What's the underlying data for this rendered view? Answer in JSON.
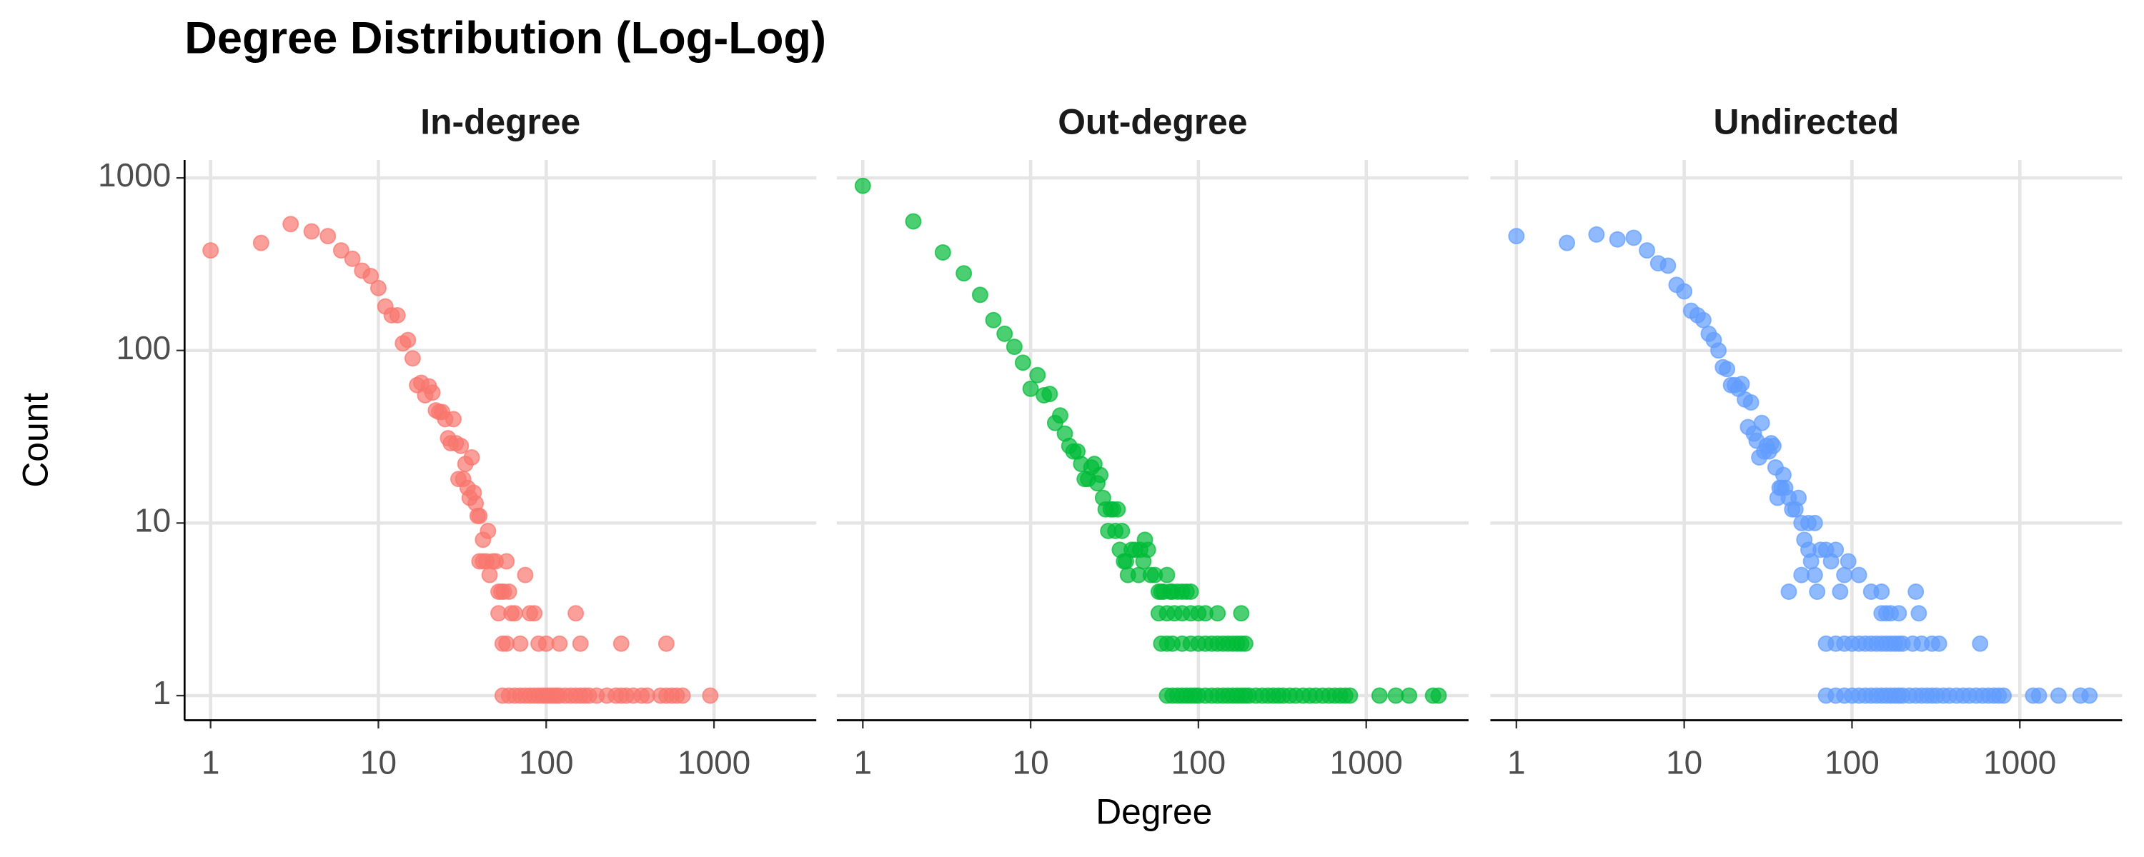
{
  "title": "Degree Distribution (Log-Log)",
  "x_label": "Degree",
  "y_label": "Count",
  "chart_data": [
    {
      "type": "scatter",
      "title": "In-degree",
      "color": "#F8766D",
      "x_log": true,
      "y_log": true,
      "grid": true,
      "xlim": [
        0.7,
        4070
      ],
      "ylim": [
        0.72,
        1270
      ],
      "xticks": [
        1,
        10,
        100,
        1000
      ],
      "yticks": [
        1,
        10,
        100,
        1000
      ],
      "x": [
        1,
        2,
        3,
        4,
        5,
        6,
        7,
        8,
        9,
        10,
        11,
        12,
        13,
        14,
        15,
        16,
        17,
        18,
        19,
        20,
        21,
        22,
        23,
        24,
        25,
        26,
        27,
        28,
        29,
        30,
        31,
        32,
        33,
        34,
        35,
        36,
        37,
        38,
        39,
        40,
        42,
        45,
        40,
        42,
        44,
        46,
        48,
        50,
        52,
        54,
        56,
        58,
        60,
        62,
        55,
        52,
        58,
        65,
        70,
        75,
        80,
        85,
        90,
        100,
        120,
        150,
        160,
        280,
        520,
        55,
        60,
        65,
        70,
        75,
        80,
        85,
        90,
        95,
        100,
        105,
        110,
        115,
        120,
        130,
        140,
        150,
        160,
        170,
        180,
        200,
        230,
        260,
        280,
        300,
        330,
        370,
        400,
        480,
        520,
        560,
        600,
        650,
        950
      ],
      "values": [
        380,
        420,
        540,
        490,
        460,
        380,
        340,
        290,
        270,
        230,
        180,
        160,
        160,
        110,
        115,
        90,
        63,
        65,
        55,
        62,
        57,
        45,
        44,
        44,
        40,
        31,
        29,
        40,
        29,
        18,
        28,
        18,
        22,
        16,
        14,
        24,
        15,
        13,
        11,
        11,
        8,
        9,
        6,
        6,
        6,
        5,
        6,
        6,
        4,
        4,
        4,
        6,
        4,
        3,
        2,
        3,
        2,
        3,
        2,
        5,
        3,
        3,
        2,
        2,
        2,
        3,
        2,
        2,
        2,
        1,
        1,
        1,
        1,
        1,
        1,
        1,
        1,
        1,
        1,
        1,
        1,
        1,
        1,
        1,
        1,
        1,
        1,
        1,
        1,
        1,
        1,
        1,
        1,
        1,
        1,
        1,
        1,
        1,
        1,
        1,
        1,
        1,
        1
      ]
    },
    {
      "type": "scatter",
      "title": "Out-degree",
      "color": "#00BA38",
      "x_log": true,
      "y_log": true,
      "grid": true,
      "xlim": [
        0.7,
        4070
      ],
      "ylim": [
        0.72,
        1270
      ],
      "xticks": [
        1,
        10,
        100,
        1000
      ],
      "yticks": [
        1,
        10,
        100,
        1000
      ],
      "x": [
        1,
        2,
        3,
        4,
        5,
        6,
        7,
        8,
        9,
        10,
        11,
        12,
        13,
        14,
        15,
        16,
        17,
        18,
        19,
        20,
        21,
        22,
        23,
        24,
        25,
        26,
        27,
        28,
        29,
        30,
        31,
        32,
        33,
        34,
        35,
        36,
        37,
        38,
        40,
        42,
        44,
        45,
        47,
        48,
        50,
        52,
        55,
        58,
        60,
        62,
        65,
        68,
        70,
        75,
        80,
        85,
        90,
        58,
        65,
        72,
        80,
        90,
        100,
        110,
        130,
        180,
        60,
        65,
        70,
        80,
        90,
        100,
        110,
        120,
        130,
        140,
        150,
        160,
        170,
        180,
        190,
        65,
        70,
        75,
        80,
        85,
        90,
        95,
        100,
        110,
        120,
        130,
        140,
        150,
        160,
        170,
        180,
        190,
        200,
        220,
        240,
        260,
        280,
        300,
        320,
        350,
        380,
        420,
        460,
        500,
        550,
        600,
        650,
        700,
        750,
        800,
        1200,
        1500,
        1800,
        2500,
        2700
      ],
      "values": [
        900,
        560,
        370,
        280,
        210,
        150,
        125,
        105,
        85,
        60,
        72,
        55,
        56,
        38,
        42,
        33,
        28,
        26,
        26,
        22,
        18,
        18,
        21,
        22,
        17,
        19,
        14,
        12,
        9,
        12,
        12,
        9,
        12,
        7,
        9,
        6,
        6,
        5,
        7,
        7,
        5,
        7,
        6,
        8,
        7,
        5,
        5,
        4,
        4,
        4,
        5,
        4,
        4,
        4,
        4,
        4,
        4,
        3,
        3,
        3,
        3,
        3,
        3,
        3,
        3,
        3,
        2,
        2,
        2,
        2,
        2,
        2,
        2,
        2,
        2,
        2,
        2,
        2,
        2,
        2,
        2,
        1,
        1,
        1,
        1,
        1,
        1,
        1,
        1,
        1,
        1,
        1,
        1,
        1,
        1,
        1,
        1,
        1,
        1,
        1,
        1,
        1,
        1,
        1,
        1,
        1,
        1,
        1,
        1,
        1,
        1,
        1,
        1,
        1,
        1,
        1,
        1,
        1,
        1,
        1,
        1
      ]
    },
    {
      "type": "scatter",
      "title": "Undirected",
      "color": "#619CFF",
      "x_log": true,
      "y_log": true,
      "grid": true,
      "xlim": [
        0.7,
        4070
      ],
      "ylim": [
        0.72,
        1270
      ],
      "xticks": [
        1,
        10,
        100,
        1000
      ],
      "yticks": [
        1,
        10,
        100,
        1000
      ],
      "x": [
        1,
        2,
        3,
        4,
        5,
        6,
        7,
        8,
        9,
        10,
        11,
        12,
        13,
        14,
        15,
        16,
        17,
        18,
        19,
        20,
        21,
        22,
        23,
        24,
        25,
        26,
        27,
        28,
        29,
        30,
        31,
        32,
        33,
        34,
        35,
        36,
        37,
        38,
        39,
        40,
        42,
        44,
        46,
        48,
        50,
        52,
        55,
        57,
        60,
        42,
        50,
        55,
        60,
        62,
        65,
        70,
        75,
        80,
        85,
        90,
        95,
        110,
        130,
        150,
        240,
        150,
        160,
        170,
        190,
        250,
        70,
        80,
        90,
        100,
        110,
        120,
        130,
        140,
        150,
        160,
        170,
        180,
        190,
        200,
        230,
        260,
        300,
        330,
        580,
        70,
        80,
        90,
        100,
        110,
        120,
        130,
        140,
        150,
        160,
        170,
        180,
        190,
        200,
        220,
        240,
        260,
        280,
        300,
        320,
        350,
        380,
        420,
        460,
        500,
        550,
        600,
        650,
        700,
        750,
        800,
        1200,
        1300,
        1700,
        2300,
        2600
      ],
      "values": [
        460,
        420,
        470,
        440,
        450,
        380,
        320,
        310,
        240,
        220,
        170,
        160,
        150,
        125,
        115,
        100,
        80,
        78,
        63,
        63,
        60,
        64,
        52,
        36,
        50,
        33,
        30,
        24,
        38,
        26,
        28,
        26,
        29,
        28,
        21,
        14,
        16,
        16,
        19,
        16,
        14,
        12,
        12,
        14,
        10,
        8,
        10,
        6,
        10,
        4,
        5,
        7,
        5,
        4,
        7,
        7,
        6,
        7,
        4,
        5,
        6,
        5,
        4,
        4,
        4,
        3,
        3,
        3,
        3,
        3,
        2,
        2,
        2,
        2,
        2,
        2,
        2,
        2,
        2,
        2,
        2,
        2,
        2,
        2,
        2,
        2,
        2,
        2,
        2,
        1,
        1,
        1,
        1,
        1,
        1,
        1,
        1,
        1,
        1,
        1,
        1,
        1,
        1,
        1,
        1,
        1,
        1,
        1,
        1,
        1,
        1,
        1,
        1,
        1,
        1,
        1,
        1,
        1,
        1,
        1,
        1,
        1,
        1,
        1,
        1
      ]
    }
  ]
}
